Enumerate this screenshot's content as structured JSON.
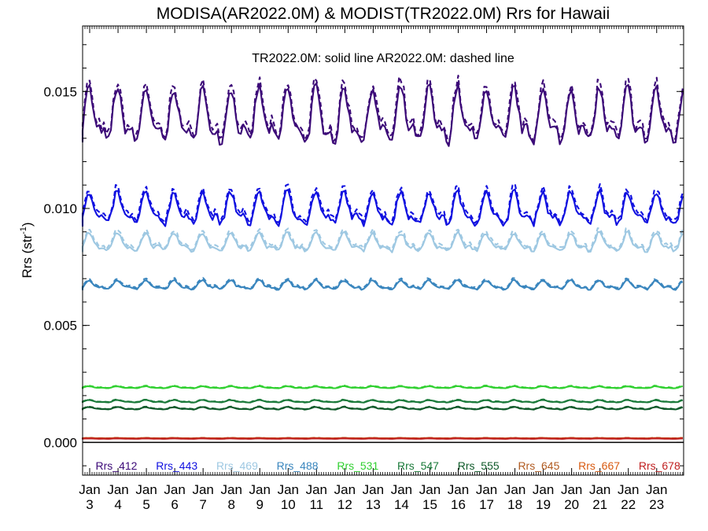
{
  "chart_data": {
    "type": "line",
    "title": "MODISA(AR2022.0M) & MODIST(TR2022.0M)  Rrs for Hawaii",
    "subtitle": "TR2022.0M: solid line   AR2022.0M: dashed line",
    "ylabel_main": "Rrs (str",
    "ylabel_sup": "-1",
    "ylabel_end": ")",
    "ylim": [
      -0.0014,
      0.0178
    ],
    "y_ticks": [
      {
        "value": 0.0,
        "label": "0.000"
      },
      {
        "value": 0.005,
        "label": "0.005"
      },
      {
        "value": 0.01,
        "label": "0.010"
      },
      {
        "value": 0.015,
        "label": "0.015"
      }
    ],
    "xlim": [
      2002.75,
      2023.95
    ],
    "x_ticks": [
      {
        "value": 2003,
        "month": "Jan",
        "year": "3"
      },
      {
        "value": 2004,
        "month": "Jan",
        "year": "4"
      },
      {
        "value": 2005,
        "month": "Jan",
        "year": "5"
      },
      {
        "value": 2006,
        "month": "Jan",
        "year": "6"
      },
      {
        "value": 2007,
        "month": "Jan",
        "year": "7"
      },
      {
        "value": 2008,
        "month": "Jan",
        "year": "8"
      },
      {
        "value": 2009,
        "month": "Jan",
        "year": "9"
      },
      {
        "value": 2010,
        "month": "Jan",
        "year": "10"
      },
      {
        "value": 2011,
        "month": "Jan",
        "year": "11"
      },
      {
        "value": 2012,
        "month": "Jan",
        "year": "12"
      },
      {
        "value": 2013,
        "month": "Jan",
        "year": "13"
      },
      {
        "value": 2014,
        "month": "Jan",
        "year": "14"
      },
      {
        "value": 2015,
        "month": "Jan",
        "year": "15"
      },
      {
        "value": 2016,
        "month": "Jan",
        "year": "16"
      },
      {
        "value": 2017,
        "month": "Jan",
        "year": "17"
      },
      {
        "value": 2018,
        "month": "Jan",
        "year": "18"
      },
      {
        "value": 2019,
        "month": "Jan",
        "year": "19"
      },
      {
        "value": 2020,
        "month": "Jan",
        "year": "20"
      },
      {
        "value": 2021,
        "month": "Jan",
        "year": "21"
      },
      {
        "value": 2022,
        "month": "Jan",
        "year": "22"
      },
      {
        "value": 2023,
        "month": "Jan",
        "year": "23"
      }
    ],
    "legend_position": "bottom-inside",
    "zero_line": true,
    "series": [
      {
        "name": "Rrs_412",
        "color": "#3c0a78",
        "mean": 0.0138,
        "amplitude": 0.00135,
        "dashed_offset": 0.0004
      },
      {
        "name": "Rrs_443",
        "color": "#1010e0",
        "mean": 0.0099,
        "amplitude": 0.0008,
        "dashed_offset": 0.0003
      },
      {
        "name": "Rrs_469",
        "color": "#9ec8e2",
        "mean": 0.0085,
        "amplitude": 0.00045,
        "dashed_offset": 0.0002
      },
      {
        "name": "Rrs_488",
        "color": "#3a86be",
        "mean": 0.0067,
        "amplitude": 0.00022,
        "dashed_offset": 0.0001
      },
      {
        "name": "Rrs_531",
        "color": "#30d030",
        "mean": 0.00235,
        "amplitude": 5e-05,
        "dashed_offset": 4e-05
      },
      {
        "name": "Rrs_547",
        "color": "#1a7a3a",
        "mean": 0.00175,
        "amplitude": 6e-05,
        "dashed_offset": 3e-05
      },
      {
        "name": "Rrs_555",
        "color": "#0f5a2a",
        "mean": 0.00145,
        "amplitude": 6e-05,
        "dashed_offset": 3e-05
      },
      {
        "name": "Rrs_645",
        "color": "#b05a20",
        "mean": 0.00018,
        "amplitude": 1e-05,
        "dashed_offset": 1e-05
      },
      {
        "name": "Rrs_667",
        "color": "#d85a10",
        "mean": 0.00017,
        "amplitude": 1e-05,
        "dashed_offset": 1e-05
      },
      {
        "name": "Rrs_678",
        "color": "#c02020",
        "mean": 0.00016,
        "amplitude": 1e-05,
        "dashed_offset": 1e-05
      }
    ]
  }
}
